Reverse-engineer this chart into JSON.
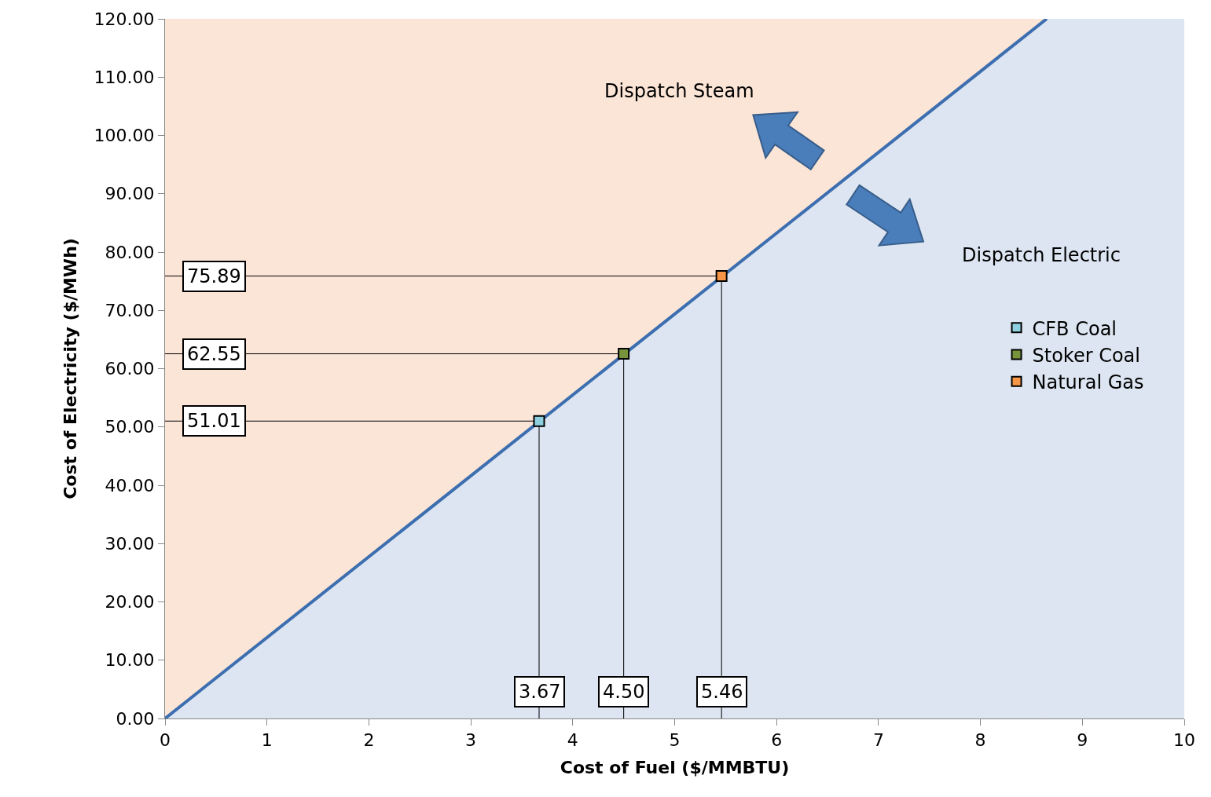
{
  "chart_data": {
    "type": "scatter",
    "xlabel": "Cost of Fuel ($/MMBTU)",
    "ylabel": "Cost of Electricity ($/MWh)",
    "xlim": [
      0,
      10
    ],
    "xticks": [
      0,
      1,
      2,
      3,
      4,
      5,
      6,
      7,
      8,
      9,
      10
    ],
    "ylim": [
      0,
      120
    ],
    "yticks": [
      {
        "value": 0,
        "label": "0.00"
      },
      {
        "value": 10,
        "label": "10.00"
      },
      {
        "value": 20,
        "label": "20.00"
      },
      {
        "value": 30,
        "label": "30.00"
      },
      {
        "value": 40,
        "label": "40.00"
      },
      {
        "value": 50,
        "label": "50.00"
      },
      {
        "value": 60,
        "label": "60.00"
      },
      {
        "value": 70,
        "label": "70.00"
      },
      {
        "value": 80,
        "label": "80.00"
      },
      {
        "value": 90,
        "label": "90.00"
      },
      {
        "value": 100,
        "label": "100.00"
      },
      {
        "value": 110,
        "label": "110.00"
      },
      {
        "value": 120,
        "label": "120.00"
      }
    ],
    "grid": false,
    "legend": "right",
    "bands": [
      {
        "axis": "y",
        "from": 0,
        "to": 120,
        "color": "#fbe5d6"
      },
      {
        "axis": "x",
        "from": 8.65,
        "to": 10,
        "color": "#dce5f1"
      }
    ],
    "series": [
      {
        "type": "area",
        "color": "#3c6eb0",
        "x": [
          0,
          8.65
        ],
        "values": [
          0,
          120
        ]
      },
      {
        "type": "line",
        "color": "#000000",
        "x": [
          0,
          3.67,
          3.67
        ],
        "values": [
          51.01,
          51.01,
          0
        ]
      },
      {
        "type": "line",
        "color": "#000000",
        "x": [
          0,
          4.5,
          4.5
        ],
        "values": [
          62.55,
          62.55,
          0
        ]
      },
      {
        "type": "line",
        "color": "#000000",
        "x": [
          0,
          5.46,
          5.46
        ],
        "values": [
          75.89,
          75.89,
          0
        ]
      },
      {
        "name": "CFB Coal",
        "color": "#8fd0e0",
        "marker": "square",
        "x": [
          3.67
        ],
        "values": [
          51.01
        ]
      },
      {
        "name": "Stoker Coal",
        "color": "#77933c",
        "marker": "square",
        "x": [
          4.5
        ],
        "values": [
          62.55
        ]
      },
      {
        "name": "Natural Gas",
        "color": "#f79646",
        "marker": "square",
        "x": [
          5.46
        ],
        "values": [
          75.89
        ]
      }
    ],
    "annotations": [
      {
        "text": "51.01",
        "x": 0,
        "y": 51.01
      },
      {
        "text": "62.55",
        "x": 0,
        "y": 62.55
      },
      {
        "text": "75.89",
        "x": 0,
        "y": 75.89
      },
      {
        "text": "3.67",
        "x": 3.67,
        "y": 0
      },
      {
        "text": "4.50",
        "x": 4.5,
        "y": 0
      },
      {
        "text": "5.46",
        "x": 5.46,
        "y": 0
      },
      "Dispatch Steam",
      "Dispatch Electric"
    ]
  }
}
